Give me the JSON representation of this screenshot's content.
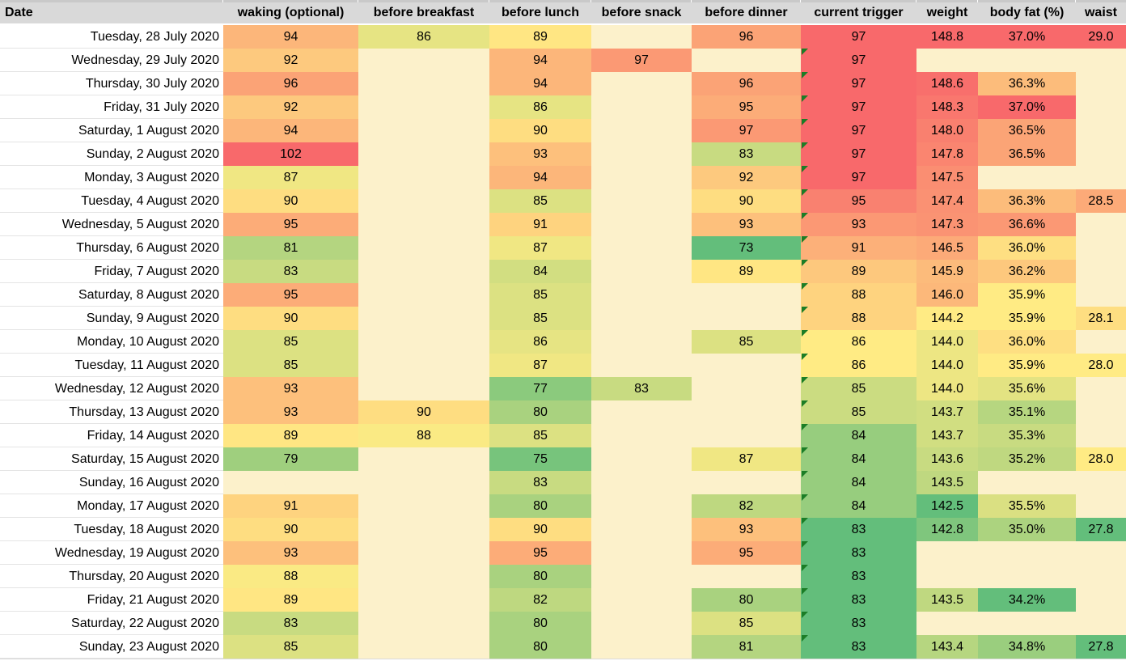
{
  "table": {
    "columns": [
      {
        "key": "date",
        "label": "Date",
        "scale": null
      },
      {
        "key": "waking",
        "label": "waking (optional)",
        "scale": "glucose"
      },
      {
        "key": "breakfast",
        "label": "before breakfast",
        "scale": "glucose"
      },
      {
        "key": "lunch",
        "label": "before lunch",
        "scale": "glucose"
      },
      {
        "key": "snack",
        "label": "before snack",
        "scale": "glucose"
      },
      {
        "key": "dinner",
        "label": "before dinner",
        "scale": "glucose"
      },
      {
        "key": "trigger",
        "label": "current trigger",
        "scale": "trigger"
      },
      {
        "key": "weight",
        "label": "weight",
        "scale": "weight"
      },
      {
        "key": "bodyfat",
        "label": "body fat (%)",
        "scale": "bodyfat"
      },
      {
        "key": "waist",
        "label": "waist",
        "scale": "waist"
      }
    ],
    "scales": {
      "glucose": {
        "min": 73,
        "mid": 88.5,
        "max": 102
      },
      "trigger": {
        "min": 83,
        "mid": 86,
        "max": 97
      },
      "weight": {
        "min": 142.5,
        "mid": 144.2,
        "max": 148.8
      },
      "bodyfat": {
        "min": 34.2,
        "mid": 35.9,
        "max": 37.0
      },
      "waist": {
        "min": 27.8,
        "mid": 28.0,
        "max": 29.0
      }
    },
    "colors": {
      "scale_low": "#63BE7B",
      "scale_mid": "#FFEB84",
      "scale_high": "#F8696B",
      "empty_cell": "#FCF1CB",
      "header_bg": "#D9D9D9",
      "gridline": "#E4E4E4",
      "error_indicator": "#1B7D26"
    },
    "rows": [
      {
        "date": "Tuesday, 28 July 2020",
        "waking": 94,
        "breakfast": 86,
        "lunch": 89,
        "snack": null,
        "dinner": 96,
        "trigger": 97,
        "flag": false,
        "weight": "148.8",
        "bodyfat": "37.0%",
        "waist": "29.0"
      },
      {
        "date": "Wednesday, 29 July 2020",
        "waking": 92,
        "breakfast": null,
        "lunch": 94,
        "snack": 97,
        "dinner": null,
        "trigger": 97,
        "flag": true,
        "weight": null,
        "bodyfat": null,
        "waist": null
      },
      {
        "date": "Thursday, 30 July 2020",
        "waking": 96,
        "breakfast": null,
        "lunch": 94,
        "snack": null,
        "dinner": 96,
        "trigger": 97,
        "flag": true,
        "weight": "148.6",
        "bodyfat": "36.3%",
        "waist": null
      },
      {
        "date": "Friday, 31 July 2020",
        "waking": 92,
        "breakfast": null,
        "lunch": 86,
        "snack": null,
        "dinner": 95,
        "trigger": 97,
        "flag": true,
        "weight": "148.3",
        "bodyfat": "37.0%",
        "waist": null
      },
      {
        "date": "Saturday, 1 August 2020",
        "waking": 94,
        "breakfast": null,
        "lunch": 90,
        "snack": null,
        "dinner": 97,
        "trigger": 97,
        "flag": true,
        "weight": "148.0",
        "bodyfat": "36.5%",
        "waist": null
      },
      {
        "date": "Sunday, 2 August 2020",
        "waking": 102,
        "breakfast": null,
        "lunch": 93,
        "snack": null,
        "dinner": 83,
        "trigger": 97,
        "flag": true,
        "weight": "147.8",
        "bodyfat": "36.5%",
        "waist": null
      },
      {
        "date": "Monday, 3 August 2020",
        "waking": 87,
        "breakfast": null,
        "lunch": 94,
        "snack": null,
        "dinner": 92,
        "trigger": 97,
        "flag": true,
        "weight": "147.5",
        "bodyfat": null,
        "waist": null
      },
      {
        "date": "Tuesday, 4 August 2020",
        "waking": 90,
        "breakfast": null,
        "lunch": 85,
        "snack": null,
        "dinner": 90,
        "trigger": 95,
        "flag": true,
        "weight": "147.4",
        "bodyfat": "36.3%",
        "waist": "28.5"
      },
      {
        "date": "Wednesday, 5 August 2020",
        "waking": 95,
        "breakfast": null,
        "lunch": 91,
        "snack": null,
        "dinner": 93,
        "trigger": 93,
        "flag": true,
        "weight": "147.3",
        "bodyfat": "36.6%",
        "waist": null
      },
      {
        "date": "Thursday, 6 August 2020",
        "waking": 81,
        "breakfast": null,
        "lunch": 87,
        "snack": null,
        "dinner": 73,
        "trigger": 91,
        "flag": true,
        "weight": "146.5",
        "bodyfat": "36.0%",
        "waist": null
      },
      {
        "date": "Friday, 7 August 2020",
        "waking": 83,
        "breakfast": null,
        "lunch": 84,
        "snack": null,
        "dinner": 89,
        "trigger": 89,
        "flag": true,
        "weight": "145.9",
        "bodyfat": "36.2%",
        "waist": null
      },
      {
        "date": "Saturday, 8 August 2020",
        "waking": 95,
        "breakfast": null,
        "lunch": 85,
        "snack": null,
        "dinner": null,
        "trigger": 88,
        "flag": true,
        "weight": "146.0",
        "bodyfat": "35.9%",
        "waist": null
      },
      {
        "date": "Sunday, 9 August 2020",
        "waking": 90,
        "breakfast": null,
        "lunch": 85,
        "snack": null,
        "dinner": null,
        "trigger": 88,
        "flag": true,
        "weight": "144.2",
        "bodyfat": "35.9%",
        "waist": "28.1"
      },
      {
        "date": "Monday, 10 August 2020",
        "waking": 85,
        "breakfast": null,
        "lunch": 86,
        "snack": null,
        "dinner": 85,
        "trigger": 86,
        "flag": true,
        "weight": "144.0",
        "bodyfat": "36.0%",
        "waist": null
      },
      {
        "date": "Tuesday, 11 August 2020",
        "waking": 85,
        "breakfast": null,
        "lunch": 87,
        "snack": null,
        "dinner": null,
        "trigger": 86,
        "flag": true,
        "weight": "144.0",
        "bodyfat": "35.9%",
        "waist": "28.0"
      },
      {
        "date": "Wednesday, 12 August 2020",
        "waking": 93,
        "breakfast": null,
        "lunch": 77,
        "snack": 83,
        "dinner": null,
        "trigger": 85,
        "flag": true,
        "weight": "144.0",
        "bodyfat": "35.6%",
        "waist": null
      },
      {
        "date": "Thursday, 13 August 2020",
        "waking": 93,
        "breakfast": 90,
        "lunch": 80,
        "snack": null,
        "dinner": null,
        "trigger": 85,
        "flag": true,
        "weight": "143.7",
        "bodyfat": "35.1%",
        "waist": null
      },
      {
        "date": "Friday, 14 August 2020",
        "waking": 89,
        "breakfast": 88,
        "lunch": 85,
        "snack": null,
        "dinner": null,
        "trigger": 84,
        "flag": true,
        "weight": "143.7",
        "bodyfat": "35.3%",
        "waist": null
      },
      {
        "date": "Saturday, 15 August 2020",
        "waking": 79,
        "breakfast": null,
        "lunch": 75,
        "snack": null,
        "dinner": 87,
        "trigger": 84,
        "flag": true,
        "weight": "143.6",
        "bodyfat": "35.2%",
        "waist": "28.0"
      },
      {
        "date": "Sunday, 16 August 2020",
        "waking": null,
        "breakfast": null,
        "lunch": 83,
        "snack": null,
        "dinner": null,
        "trigger": 84,
        "flag": true,
        "weight": "143.5",
        "bodyfat": null,
        "waist": null
      },
      {
        "date": "Monday, 17 August 2020",
        "waking": 91,
        "breakfast": null,
        "lunch": 80,
        "snack": null,
        "dinner": 82,
        "trigger": 84,
        "flag": true,
        "weight": "142.5",
        "bodyfat": "35.5%",
        "waist": null
      },
      {
        "date": "Tuesday, 18 August 2020",
        "waking": 90,
        "breakfast": null,
        "lunch": 90,
        "snack": null,
        "dinner": 93,
        "trigger": 83,
        "flag": true,
        "weight": "142.8",
        "bodyfat": "35.0%",
        "waist": "27.8"
      },
      {
        "date": "Wednesday, 19 August 2020",
        "waking": 93,
        "breakfast": null,
        "lunch": 95,
        "snack": null,
        "dinner": 95,
        "trigger": 83,
        "flag": true,
        "weight": null,
        "bodyfat": null,
        "waist": null
      },
      {
        "date": "Thursday, 20 August 2020",
        "waking": 88,
        "breakfast": null,
        "lunch": 80,
        "snack": null,
        "dinner": null,
        "trigger": 83,
        "flag": true,
        "weight": null,
        "bodyfat": null,
        "waist": null
      },
      {
        "date": "Friday, 21 August 2020",
        "waking": 89,
        "breakfast": null,
        "lunch": 82,
        "snack": null,
        "dinner": 80,
        "trigger": 83,
        "flag": true,
        "weight": "143.5",
        "bodyfat": "34.2%",
        "waist": null
      },
      {
        "date": "Saturday, 22 August 2020",
        "waking": 83,
        "breakfast": null,
        "lunch": 80,
        "snack": null,
        "dinner": 85,
        "trigger": 83,
        "flag": true,
        "weight": null,
        "bodyfat": null,
        "waist": null
      },
      {
        "date": "Sunday, 23 August 2020",
        "waking": 85,
        "breakfast": null,
        "lunch": 80,
        "snack": null,
        "dinner": 81,
        "trigger": 83,
        "flag": true,
        "weight": "143.4",
        "bodyfat": "34.8%",
        "waist": "27.8"
      }
    ]
  }
}
